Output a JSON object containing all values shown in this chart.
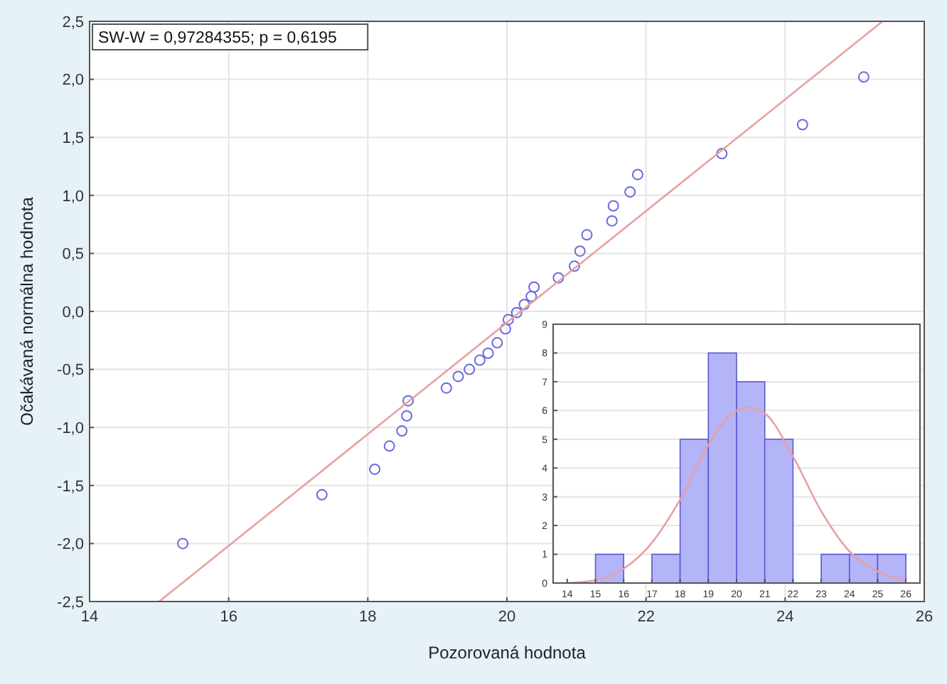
{
  "chart_data": [
    {
      "type": "scatter",
      "xlabel": "Pozorovaná hodnota",
      "ylabel": "Očakávaná normálna hodnota",
      "annotations": [
        "SW-W = 0,97284355; p = 0,6195"
      ],
      "xlim": [
        14,
        26
      ],
      "xticks": [
        14,
        16,
        18,
        20,
        22,
        24,
        26
      ],
      "ylim": [
        -2.5,
        2.5
      ],
      "yticks": [
        {
          "value": -2.5,
          "label": "-2,5"
        },
        {
          "value": -2,
          "label": "-2,0"
        },
        {
          "value": -1.5,
          "label": "-1,5"
        },
        {
          "value": -1,
          "label": "-1,0"
        },
        {
          "value": -0.5,
          "label": "-0,5"
        },
        {
          "value": 0,
          "label": "0,0"
        },
        {
          "value": 0.5,
          "label": "0,5"
        },
        {
          "value": 1,
          "label": "1,0"
        },
        {
          "value": 1.5,
          "label": "1,5"
        },
        {
          "value": 2,
          "label": "2,0"
        },
        {
          "value": 2.5,
          "label": "2,5"
        }
      ],
      "grid": true,
      "series": [
        {
          "type": "scatter",
          "marker": "circle",
          "color": "#6a6ae0",
          "x": [
            15.34,
            17.34,
            18.1,
            18.31,
            18.49,
            18.56,
            18.58,
            19.13,
            19.3,
            19.46,
            19.61,
            19.73,
            19.86,
            19.98,
            20.02,
            20.14,
            20.25,
            20.35,
            20.39,
            20.74,
            20.97,
            21.05,
            21.15,
            21.51,
            21.53,
            21.77,
            21.88,
            23.09,
            24.25,
            25.13
          ],
          "values": [
            -2.0,
            -1.58,
            -1.36,
            -1.16,
            -1.03,
            -0.9,
            -0.77,
            -0.66,
            -0.56,
            -0.5,
            -0.42,
            -0.36,
            -0.27,
            -0.15,
            -0.07,
            -0.01,
            0.06,
            0.13,
            0.21,
            0.29,
            0.39,
            0.52,
            0.66,
            0.78,
            0.91,
            1.03,
            1.18,
            1.36,
            1.61,
            2.02
          ]
        },
        {
          "type": "line",
          "color": "#e8a0a0",
          "x": [
            15.0,
            25.4
          ],
          "values": [
            -2.5,
            2.5
          ]
        }
      ]
    },
    {
      "type": "histogram",
      "bins": [
        14,
        15,
        16,
        17,
        18,
        19,
        20,
        21,
        22,
        23,
        24,
        25,
        26
      ],
      "values": [
        0,
        1,
        0,
        1,
        5,
        8,
        7,
        5,
        0,
        1,
        1,
        1
      ],
      "color": "#b4b4f8",
      "xlim": [
        13.5,
        26.5
      ],
      "xticks": [
        14,
        15,
        16,
        17,
        18,
        19,
        20,
        21,
        22,
        23,
        24,
        25,
        26
      ],
      "ylim": [
        0,
        9
      ],
      "yticks": [
        0,
        1,
        2,
        3,
        4,
        5,
        6,
        7,
        8,
        9
      ],
      "grid": "y",
      "series": [
        {
          "type": "line",
          "color": "#e8a0a0",
          "x": [
            14,
            15,
            16,
            17,
            18,
            19,
            20,
            20.4,
            21,
            22,
            23,
            24,
            25,
            26
          ],
          "values": [
            0.0,
            0.1,
            0.5,
            1.4,
            2.9,
            4.8,
            6.0,
            6.1,
            5.9,
            4.4,
            2.5,
            1.1,
            0.4,
            0.1
          ]
        }
      ]
    }
  ]
}
